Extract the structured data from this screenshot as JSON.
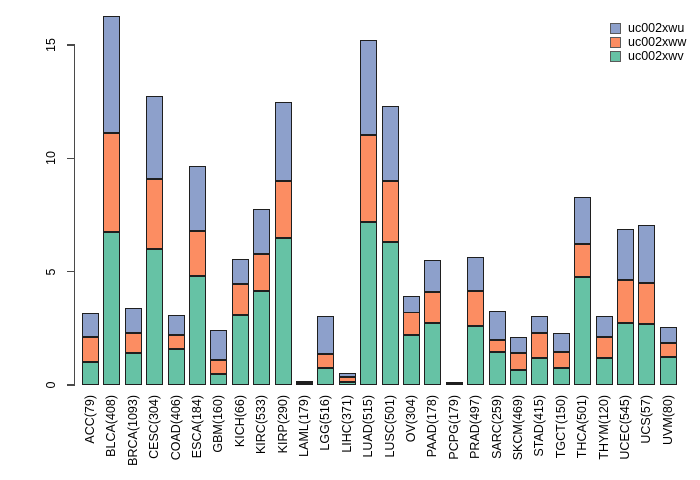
{
  "chart_data": {
    "type": "bar",
    "stacked": true,
    "title": "",
    "xlabel": "",
    "ylabel": "",
    "grid": false,
    "ylim": [
      0,
      16.5
    ],
    "yticks": [
      "0",
      "5",
      "10",
      "15"
    ],
    "categories": [
      "ACC(79)",
      "BLCA(408)",
      "BRCA(1093)",
      "CESC(304)",
      "COAD(406)",
      "ESCA(184)",
      "GBM(160)",
      "KICH(66)",
      "KIRC(533)",
      "KIRP(290)",
      "LAML(179)",
      "LGG(516)",
      "LIHC(371)",
      "LUAD(515)",
      "LUSC(501)",
      "OV(304)",
      "PAAD(178)",
      "PCPG(179)",
      "PRAD(497)",
      "SARC(259)",
      "SKCM(469)",
      "STAD(415)",
      "TGCT(150)",
      "THCA(501)",
      "THYM(120)",
      "UCEC(545)",
      "UCS(57)",
      "UVM(80)"
    ],
    "series": [
      {
        "name": "uc002xwv",
        "color": "#66c2a5",
        "stack_position": "bottom",
        "values": [
          1.0,
          6.75,
          1.4,
          6.0,
          1.6,
          4.8,
          0.5,
          3.1,
          4.15,
          6.5,
          0.05,
          0.77,
          0.15,
          7.2,
          6.3,
          2.2,
          2.75,
          0.03,
          2.6,
          1.45,
          0.65,
          1.2,
          0.75,
          4.75,
          1.2,
          2.75,
          2.7,
          1.25
        ]
      },
      {
        "name": "uc002xww",
        "color": "#fc8d62",
        "stack_position": "middle",
        "values": [
          1.1,
          4.35,
          0.9,
          3.1,
          0.6,
          2.0,
          0.6,
          1.35,
          1.65,
          2.5,
          0.04,
          0.6,
          0.19,
          3.85,
          2.7,
          1.0,
          1.35,
          0.03,
          1.55,
          0.55,
          0.75,
          1.1,
          0.7,
          1.45,
          0.9,
          1.9,
          1.8,
          0.6
        ]
      },
      {
        "name": "uc002xwu",
        "color": "#8da0cb",
        "stack_position": "top",
        "values": [
          1.1,
          5.2,
          1.1,
          3.65,
          0.9,
          2.85,
          1.35,
          1.1,
          1.95,
          3.5,
          0.08,
          1.68,
          0.2,
          4.15,
          3.3,
          0.75,
          1.4,
          0.04,
          1.5,
          1.25,
          0.7,
          0.75,
          0.85,
          2.1,
          0.95,
          2.25,
          2.55,
          0.7
        ]
      }
    ],
    "legend": {
      "position": "top-right",
      "entries": [
        {
          "label": "uc002xwu",
          "color": "#8da0cb"
        },
        {
          "label": "uc002xww",
          "color": "#fc8d62"
        },
        {
          "label": "uc002xwv",
          "color": "#66c2a5"
        }
      ]
    }
  }
}
